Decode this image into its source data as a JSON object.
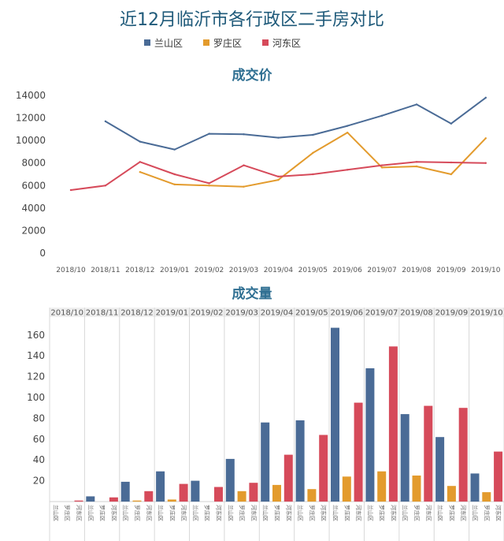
{
  "title": "近12月临沂市各行政区二手房对比",
  "legend": [
    {
      "name": "兰山区",
      "color": "#4a6b96"
    },
    {
      "name": "罗庄区",
      "color": "#e39b2d"
    },
    {
      "name": "河东区",
      "color": "#d64a5a"
    }
  ],
  "chart_data": [
    {
      "type": "line",
      "title": "成交价",
      "x": [
        "2018/10",
        "2018/11",
        "2018/12",
        "2019/01",
        "2019/02",
        "2019/03",
        "2019/04",
        "2019/05",
        "2019/06",
        "2019/07",
        "2019/08",
        "2019/09",
        "2019/10"
      ],
      "yticks": [
        0,
        2000,
        4000,
        6000,
        8000,
        10000,
        12000,
        14000
      ],
      "ylim": [
        0,
        14000
      ],
      "grid": false,
      "series": [
        {
          "name": "兰山区",
          "color": "#4a6b96",
          "values": [
            null,
            11700,
            9900,
            9200,
            10600,
            10550,
            10250,
            10500,
            11300,
            12200,
            13200,
            11500,
            13800
          ]
        },
        {
          "name": "罗庄区",
          "color": "#e39b2d",
          "values": [
            null,
            null,
            7200,
            6100,
            6000,
            5900,
            6500,
            8900,
            10700,
            7600,
            7700,
            7000,
            10200
          ]
        },
        {
          "name": "河东区",
          "color": "#d64a5a",
          "values": [
            5600,
            6000,
            8100,
            7000,
            6200,
            7800,
            6800,
            7000,
            7400,
            7800,
            8100,
            8050,
            8000
          ]
        }
      ]
    },
    {
      "type": "bar",
      "title": "成交量",
      "x": [
        "2018/10",
        "2018/11",
        "2018/12",
        "2019/01",
        "2019/02",
        "2019/03",
        "2019/04",
        "2019/05",
        "2019/06",
        "2019/07",
        "2019/08",
        "2019/09",
        "2019/10"
      ],
      "sub_categories": [
        "兰山区",
        "罗庄区",
        "河东区"
      ],
      "yticks": [
        20,
        40,
        60,
        80,
        100,
        120,
        140,
        160
      ],
      "ylim": [
        0,
        175
      ],
      "grid": false,
      "series": [
        {
          "name": "兰山区",
          "color": "#4a6b96",
          "values": [
            0,
            5,
            19,
            29,
            20,
            41,
            76,
            78,
            167,
            128,
            84,
            62,
            27
          ]
        },
        {
          "name": "罗庄区",
          "color": "#e39b2d",
          "values": [
            0,
            0,
            1,
            2,
            0,
            10,
            16,
            12,
            24,
            29,
            25,
            15,
            9
          ]
        },
        {
          "name": "河东区",
          "color": "#d64a5a",
          "values": [
            1,
            4,
            10,
            17,
            14,
            18,
            45,
            64,
            95,
            149,
            92,
            90,
            48
          ]
        }
      ]
    }
  ]
}
